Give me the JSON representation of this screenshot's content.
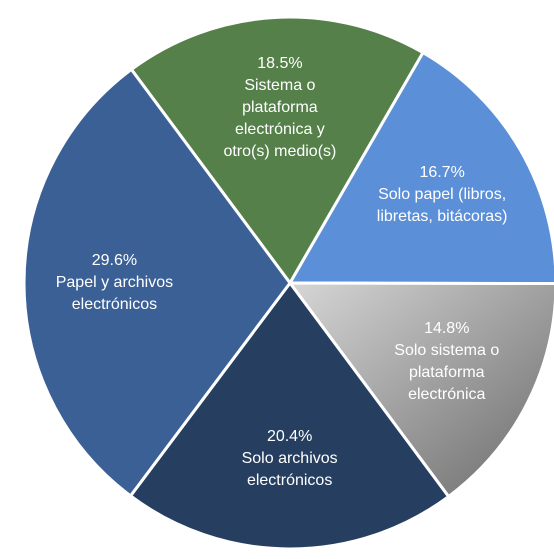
{
  "chart_data": {
    "type": "pie",
    "categories": [
      "Sistema o plataforma electrónica y otro(s) medio(s)",
      "Solo papel (libros, libretas, bitácoras)",
      "Solo sistema o plataforma electrónica",
      "Solo archivos electrónicos",
      "Papel y archivos electrónicos"
    ],
    "values": [
      18.5,
      16.7,
      14.8,
      20.4,
      29.6
    ],
    "value_labels": [
      "18.5%",
      "16.7%",
      "14.8%",
      "20.4%",
      "29.6%"
    ],
    "colors": [
      "#55804a",
      "#5b8fd8",
      "#9a9a9a",
      "#263f60",
      "#3b6096"
    ]
  }
}
